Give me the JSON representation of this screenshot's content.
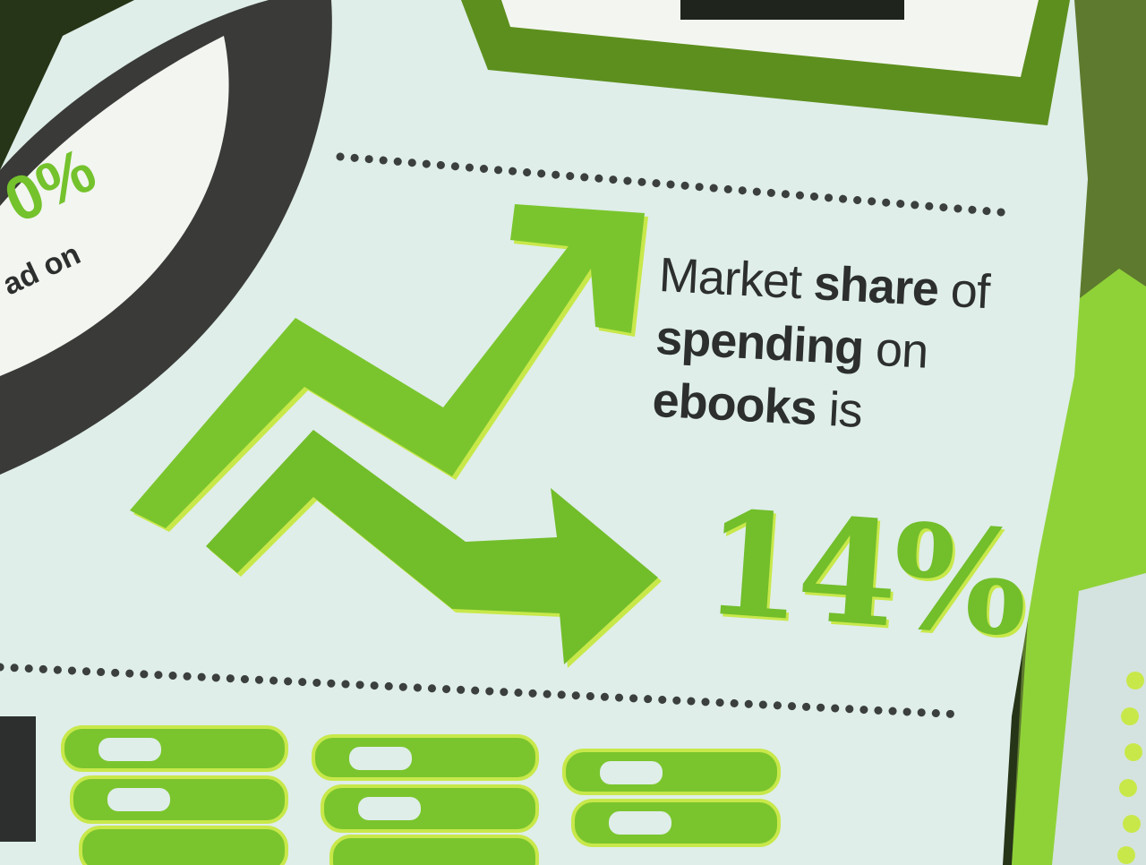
{
  "fact": {
    "line1_normal": "Market",
    "line1_bold": "share",
    "line1_end": "of",
    "line2_bold": "spending",
    "line2_end": "on",
    "line3_bold": "ebooks",
    "line3_end": "is",
    "value": "14%"
  },
  "colors": {
    "paper": "#dfeee9",
    "green": "#74c22c",
    "green_highlight": "#c8e84a",
    "ink": "#2c2f2e",
    "dark_ring": "#3a3a38",
    "background_green": "#5e7a2e"
  },
  "icons": [
    "zigzag-arrow-icon",
    "books-stack-icon"
  ]
}
